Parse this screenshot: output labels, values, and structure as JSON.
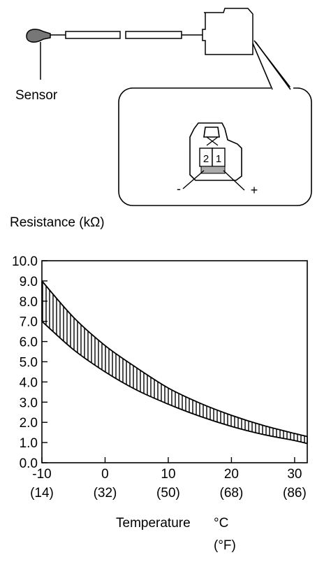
{
  "diagram": {
    "sensor_label": "Sensor",
    "pin_labels": [
      "2",
      "1"
    ],
    "polarity": {
      "negative": "-",
      "positive": "+"
    }
  },
  "chart_data": {
    "type": "area",
    "title": "",
    "ylabel": "Resistance (kΩ)",
    "xlabel": "Temperature",
    "x_unit_primary": "°C",
    "x_unit_secondary": "(°F)",
    "xlim": [
      -10,
      32
    ],
    "ylim": [
      0,
      10
    ],
    "x_ticks": [
      {
        "value": -10,
        "label": "-10",
        "sublabel": "(14)"
      },
      {
        "value": 0,
        "label": "0",
        "sublabel": "(32)"
      },
      {
        "value": 10,
        "label": "10",
        "sublabel": "(50)"
      },
      {
        "value": 20,
        "label": "20",
        "sublabel": "(68)"
      },
      {
        "value": 30,
        "label": "30",
        "sublabel": "(86)"
      }
    ],
    "y_ticks": [
      "0.0",
      "1.0",
      "2.0",
      "3.0",
      "4.0",
      "5.0",
      "6.0",
      "7.0",
      "8.0",
      "9.0",
      "10.0"
    ],
    "grid": false,
    "band": {
      "x": [
        -10,
        -5,
        0,
        5,
        10,
        15,
        20,
        25,
        30,
        32
      ],
      "upper": [
        9.0,
        7.2,
        5.8,
        4.7,
        3.7,
        2.95,
        2.35,
        1.85,
        1.45,
        1.3
      ],
      "lower": [
        7.0,
        5.6,
        4.5,
        3.6,
        2.9,
        2.3,
        1.8,
        1.4,
        1.1,
        0.95
      ]
    },
    "band_fill": "vertical hatching"
  }
}
